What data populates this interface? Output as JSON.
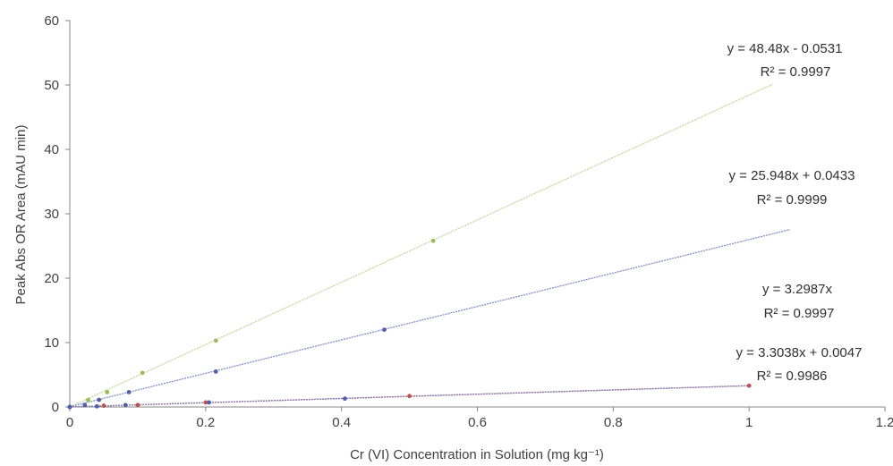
{
  "chart_data": {
    "type": "scatter",
    "xlabel": "Cr (VI) Concentration in Solution (mg kg⁻¹)",
    "ylabel": "Peak Abs OR Area (mAU min)",
    "xlim": [
      0,
      1.2
    ],
    "ylim": [
      0,
      60
    ],
    "x_ticks": [
      "0",
      "0.2",
      "0.4",
      "0.6",
      "0.8",
      "1",
      "1.2"
    ],
    "y_ticks": [
      "0",
      "10",
      "20",
      "30",
      "40",
      "50",
      "60"
    ],
    "x_tick_values": [
      0,
      0.2,
      0.4,
      0.6,
      0.8,
      1.0,
      1.2
    ],
    "y_tick_values": [
      0,
      10,
      20,
      30,
      40,
      50,
      60
    ],
    "grid": false,
    "series": [
      {
        "color": "#9bbb59",
        "trend_color": "#c4d79b",
        "slope": 48.48,
        "intercept": -0.0531,
        "fit_x_range": [
          0,
          1.035
        ],
        "points": [
          [
            0,
            0
          ],
          [
            0.027,
            1.1
          ],
          [
            0.055,
            2.3
          ],
          [
            0.107,
            5.3
          ],
          [
            0.215,
            10.3
          ],
          [
            0.535,
            25.8
          ]
        ],
        "equation": "y = 48.48x - 0.0531",
        "r2": "R² = 0.9997"
      },
      {
        "color": "#4f5fa8",
        "trend_color": "#7f8fc8",
        "slope": 25.948,
        "intercept": 0.0433,
        "fit_x_range": [
          0,
          1.06
        ],
        "points": [
          [
            0,
            0
          ],
          [
            0.022,
            0.3
          ],
          [
            0.043,
            1.1
          ],
          [
            0.087,
            2.3
          ],
          [
            0.215,
            5.5
          ],
          [
            0.463,
            12.0
          ]
        ],
        "equation": "y = 25.948x + 0.0433",
        "r2": "R² = 0.9999"
      },
      {
        "color": "#c0504d",
        "trend_color": "#a05050",
        "slope": 3.3038,
        "intercept": 0.0047,
        "fit_x_range": [
          0,
          1.0
        ],
        "points": [
          [
            0,
            0
          ],
          [
            0.05,
            0.2
          ],
          [
            0.1,
            0.3
          ],
          [
            0.2,
            0.7
          ],
          [
            0.5,
            1.7
          ],
          [
            1.0,
            3.3
          ]
        ],
        "equation": "y = 3.3038x + 0.0047",
        "r2": "R² = 0.9986"
      },
      {
        "color": "#4f5fa8",
        "trend_color": "#8c7fb8",
        "slope": 3.2987,
        "intercept": 0,
        "fit_x_range": [
          0,
          1.0
        ],
        "points": [
          [
            0,
            0
          ],
          [
            0.04,
            0.1
          ],
          [
            0.082,
            0.3
          ],
          [
            0.205,
            0.7
          ],
          [
            0.405,
            1.3
          ]
        ],
        "equation": "y = 3.2987x",
        "r2": "R² = 0.9997"
      }
    ]
  }
}
